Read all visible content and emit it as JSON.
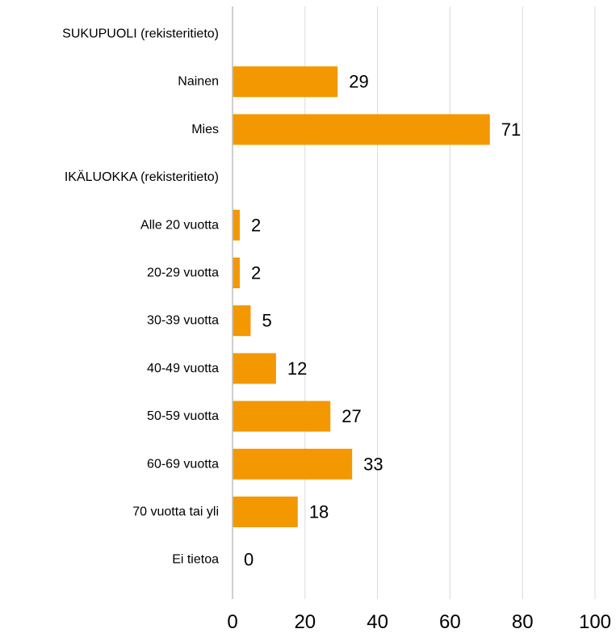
{
  "chart_data": {
    "type": "bar",
    "orientation": "horizontal",
    "categories": [
      "SUKUPUOLI (rekisteritieto)",
      "Nainen",
      "Mies",
      "IKÄLUOKKA (rekisteritieto)",
      "Alle 20 vuotta",
      "20-29 vuotta",
      "30-39 vuotta",
      "40-49 vuotta",
      "50-59 vuotta",
      "60-69 vuotta",
      "70 vuotta tai yli",
      "Ei tietoa"
    ],
    "values": [
      null,
      29,
      71,
      null,
      2,
      2,
      5,
      12,
      27,
      33,
      18,
      0
    ],
    "data_labels": [
      "",
      "29",
      "71",
      "",
      "2",
      "2",
      "5",
      "12",
      "27",
      "33",
      "18",
      "0"
    ],
    "x_ticks": [
      "0",
      "20",
      "40",
      "60",
      "80",
      "100"
    ],
    "xlim": [
      0,
      100
    ],
    "grid": true,
    "colors": {
      "bar": "#F39800",
      "grid": "#D9D9D9",
      "axis": "#BFBFBF",
      "text": "#000000"
    },
    "title": "",
    "xlabel": "",
    "ylabel": ""
  }
}
